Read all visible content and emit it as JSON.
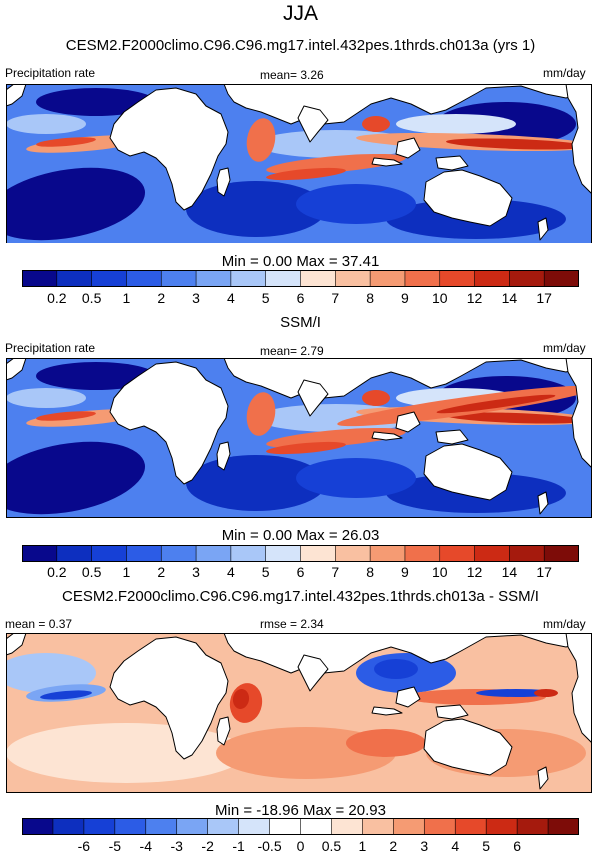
{
  "figure_title": "JJA",
  "colors": {
    "precip_scale": [
      "#08088c",
      "#0d2fbf",
      "#1640d6",
      "#2c5ce6",
      "#4d80ef",
      "#7aa5f4",
      "#a9c7f8",
      "#d5e4fa",
      "#fde4d3",
      "#f9c0a1",
      "#f59b73",
      "#f0704b",
      "#e6492a",
      "#cc2a14",
      "#a51a0d",
      "#7d0c08"
    ],
    "diff_scale": [
      "#08088c",
      "#0d2fbf",
      "#1640d6",
      "#2c5ce6",
      "#4d80ef",
      "#7aa5f4",
      "#a9c7f8",
      "#d5e4fa",
      "#ffffff",
      "#ffffff",
      "#fde4d3",
      "#f9c0a1",
      "#f59b73",
      "#f0704b",
      "#e6492a",
      "#cc2a14",
      "#a51a0d",
      "#7d0c08"
    ],
    "land": "#ffffff",
    "coast": "#000000"
  },
  "chart_data": [
    {
      "type": "heatmap",
      "title": "CESM2.F2000climo.C96.C96.mg17.intel.432pes.1thrds.ch013a (yrs 1)",
      "left_label": "Precipitation rate",
      "center_label": "mean=  3.26",
      "units": "mm/day",
      "mean": 3.26,
      "min": 0.0,
      "max": 37.41,
      "minmax_text": "Min =   0.00 Max =  37.41",
      "colorbar_ticks": [
        "0.2",
        "0.5",
        "1",
        "2",
        "3",
        "4",
        "5",
        "6",
        "7",
        "8",
        "9",
        "10",
        "12",
        "14",
        "17"
      ]
    },
    {
      "type": "heatmap",
      "title": "SSM/I",
      "left_label": "Precipitation rate",
      "center_label": "mean=  2.79",
      "units": "mm/day",
      "mean": 2.79,
      "min": 0.0,
      "max": 26.03,
      "minmax_text": "Min =   0.00 Max =  26.03",
      "colorbar_ticks": [
        "0.2",
        "0.5",
        "1",
        "2",
        "3",
        "4",
        "5",
        "6",
        "7",
        "8",
        "9",
        "10",
        "12",
        "14",
        "17"
      ]
    },
    {
      "type": "heatmap",
      "title": "CESM2.F2000climo.C96.C96.mg17.intel.432pes.1thrds.ch013a - SSM/I",
      "left_label": "mean =   0.37",
      "center_label": "rmse =  2.34",
      "units": "mm/day",
      "mean": 0.37,
      "rmse": 2.34,
      "min": -18.96,
      "max": 20.93,
      "minmax_text": "Min = -18.96 Max =  20.93",
      "colorbar_ticks": [
        "-6",
        "-5",
        "-4",
        "-3",
        "-2",
        "-1",
        "-0.5",
        "0",
        "0.5",
        "1",
        "2",
        "3",
        "4",
        "5",
        "6"
      ]
    }
  ]
}
